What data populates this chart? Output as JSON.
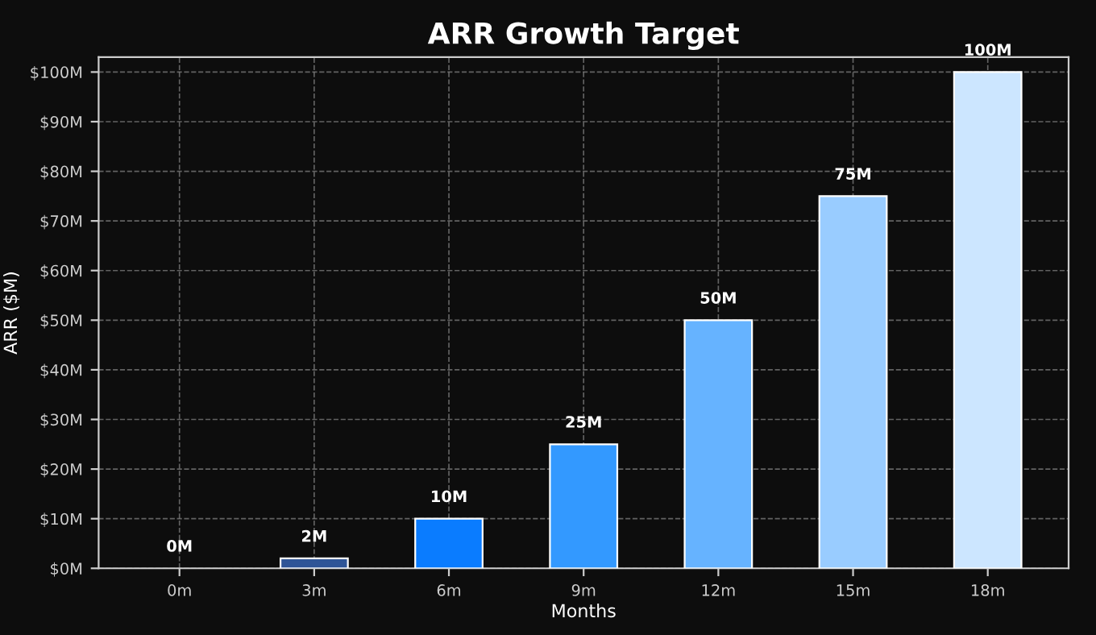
{
  "chart_data": {
    "type": "bar",
    "title": "ARR Growth Target",
    "xlabel": "Months",
    "ylabel": "ARR ($M)",
    "categories": [
      "0m",
      "3m",
      "6m",
      "9m",
      "12m",
      "15m",
      "18m"
    ],
    "values": [
      0,
      2,
      10,
      25,
      50,
      75,
      100
    ],
    "colors": [
      "#1f3a6e",
      "#2f5597",
      "#0a7cff",
      "#3399ff",
      "#66b3ff",
      "#99ccff",
      "#cce6ff"
    ],
    "value_labels": [
      "0M",
      "2M",
      "10M",
      "25M",
      "50M",
      "75M",
      "100M"
    ],
    "ylim": [
      0,
      103
    ],
    "yticks": [
      {
        "value": 0,
        "label": "$0M"
      },
      {
        "value": 10,
        "label": "$10M"
      },
      {
        "value": 20,
        "label": "$20M"
      },
      {
        "value": 30,
        "label": "$30M"
      },
      {
        "value": 40,
        "label": "$40M"
      },
      {
        "value": 50,
        "label": "$50M"
      },
      {
        "value": 60,
        "label": "$60M"
      },
      {
        "value": 70,
        "label": "$70M"
      },
      {
        "value": 80,
        "label": "$80M"
      },
      {
        "value": 90,
        "label": "$90M"
      },
      {
        "value": 100,
        "label": "$100M"
      }
    ],
    "grid": true
  }
}
